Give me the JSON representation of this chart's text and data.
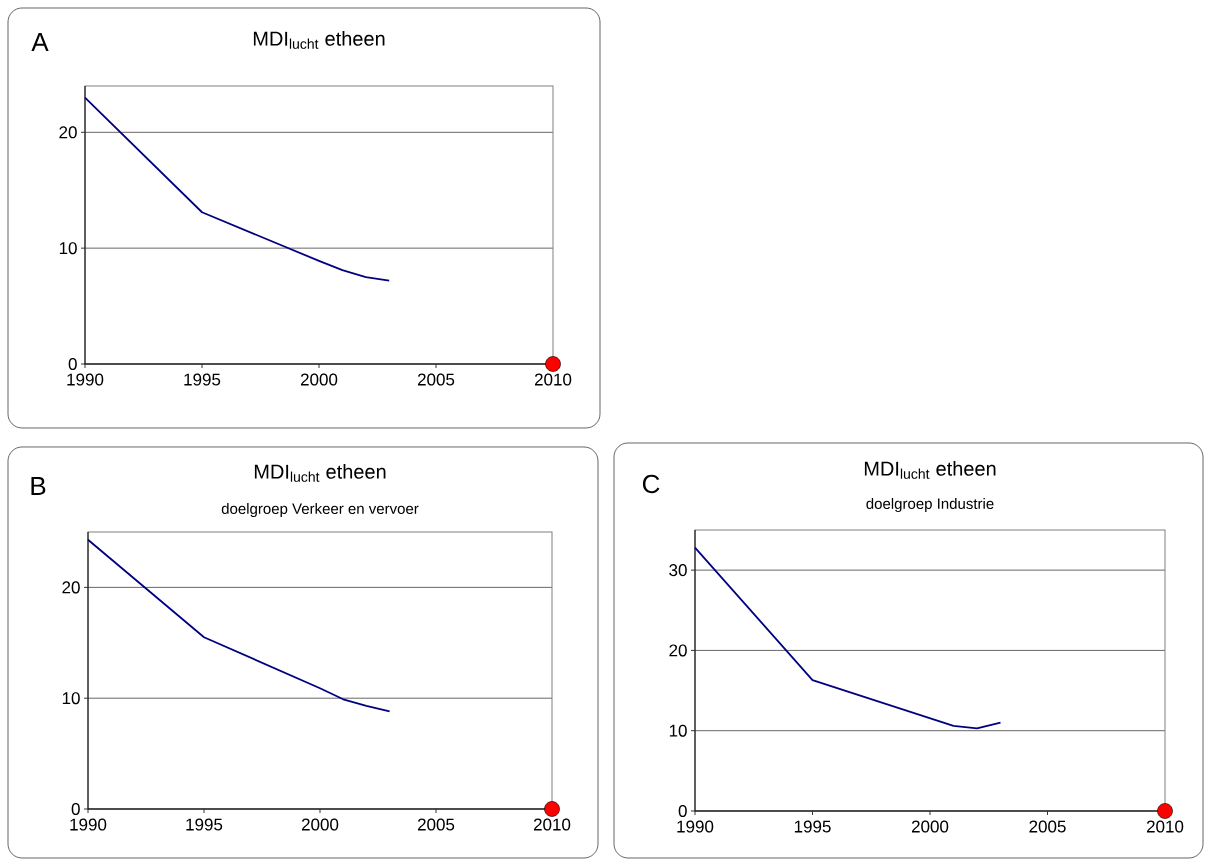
{
  "chart_data": [
    {
      "type": "line",
      "title": "MDI$_{lucht}$ etheen",
      "annotations": [
        "A"
      ],
      "xlim": [
        1990,
        2010
      ],
      "ylim": [
        0,
        24
      ],
      "xticks": [
        1990,
        1995,
        2000,
        2005,
        2010
      ],
      "yticks": [
        0,
        10,
        20
      ],
      "grid": "y",
      "series": [
        {
          "color": "#000080",
          "x": [
            1990,
            1995,
            2000,
            2001,
            2002,
            2003
          ],
          "values": [
            23.0,
            13.1,
            8.9,
            8.1,
            7.5,
            7.2
          ]
        },
        {
          "type": "scatter",
          "color": "#ff0000",
          "x": [
            2010
          ],
          "values": [
            0
          ]
        }
      ]
    },
    {
      "type": "line",
      "title": "MDI$_{lucht}$ etheen",
      "subtitle": "doelgroep Verkeer en vervoer",
      "annotations": [
        "B"
      ],
      "xlim": [
        1990,
        2010
      ],
      "ylim": [
        0,
        25
      ],
      "xticks": [
        1990,
        1995,
        2000,
        2005,
        2010
      ],
      "yticks": [
        0,
        10,
        20
      ],
      "grid": "y",
      "series": [
        {
          "color": "#000080",
          "x": [
            1990,
            1995,
            2000,
            2001,
            2002,
            2003
          ],
          "values": [
            24.3,
            15.5,
            10.9,
            9.9,
            9.3,
            8.8
          ]
        },
        {
          "type": "scatter",
          "color": "#ff0000",
          "x": [
            2010
          ],
          "values": [
            0
          ]
        }
      ]
    },
    {
      "type": "line",
      "title": "MDI$_{lucht}$ etheen",
      "subtitle": "doelgroep Industrie",
      "annotations": [
        "C"
      ],
      "xlim": [
        1990,
        2010
      ],
      "ylim": [
        0,
        35
      ],
      "xticks": [
        1990,
        1995,
        2000,
        2005,
        2010
      ],
      "yticks": [
        0,
        10,
        20,
        30
      ],
      "grid": "y",
      "series": [
        {
          "color": "#000080",
          "x": [
            1990,
            1995,
            2001,
            2002,
            2003
          ],
          "values": [
            32.8,
            16.3,
            10.6,
            10.3,
            11.0
          ]
        },
        {
          "type": "scatter",
          "color": "#ff0000",
          "x": [
            2010
          ],
          "values": [
            0
          ]
        }
      ]
    }
  ]
}
